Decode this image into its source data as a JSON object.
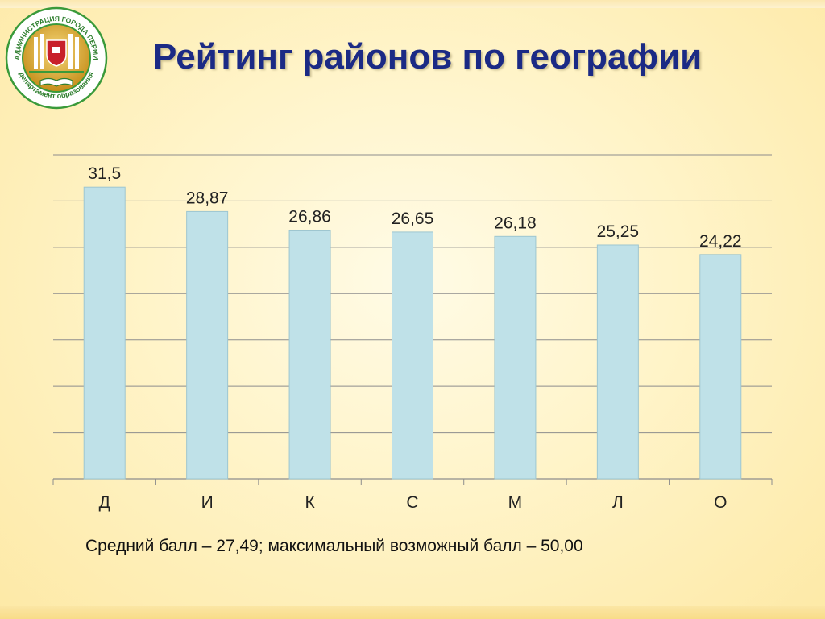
{
  "title": "Рейтинг районов по географии",
  "logo": {
    "top_text": "АДМИНИСТРАЦИЯ ГОРОДА ПЕРМИ",
    "bottom_text": "департамент образования"
  },
  "chart_data": {
    "type": "bar",
    "categories": [
      "Д",
      "И",
      "К",
      "С",
      "М",
      "Л",
      "О"
    ],
    "values": [
      31.5,
      28.87,
      26.86,
      26.65,
      26.18,
      25.25,
      24.22
    ],
    "value_labels": [
      "31,5",
      "28,87",
      "26,86",
      "26,65",
      "26,18",
      "25,25",
      "24,22"
    ],
    "title": "",
    "xlabel": "",
    "ylabel": "",
    "ylim": [
      0,
      35
    ],
    "grid": true,
    "legend": "none",
    "bar_color": "#bfe1e8",
    "bar_edge_color": "#9ec6d0"
  },
  "footnote": "Средний балл – 27,49; максимальный возможный балл – 50,00",
  "colors": {
    "title": "#1b2a85",
    "logo_ring": "#3a9a3a",
    "logo_gold": "#d6a62a"
  }
}
